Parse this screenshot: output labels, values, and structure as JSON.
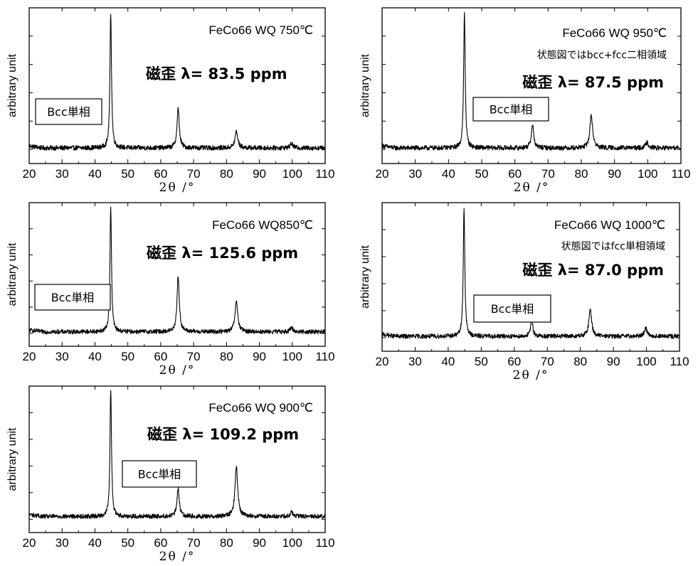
{
  "chart_data": [
    {
      "type": "line",
      "title": "FeCo66  WQ 750℃",
      "note": "",
      "magnetostriction": "磁歪 λ= 83.5 ppm",
      "phase_label": "Bcc単相",
      "xlabel": "2θ /°",
      "ylabel": "arbitrary unit",
      "xlim": [
        20,
        110
      ],
      "ylim": [
        0,
        100
      ],
      "xticks": [
        "20",
        "30",
        "40",
        "50",
        "60",
        "70",
        "80",
        "90",
        "100",
        "110"
      ],
      "grid": false,
      "baseline": 9,
      "peaks": [
        {
          "x": 44.8,
          "y": 100
        },
        {
          "x": 65.3,
          "y": 35
        },
        {
          "x": 83.0,
          "y": 20
        },
        {
          "x": 99.8,
          "y": 12
        }
      ]
    },
    {
      "type": "line",
      "title": "FeCo66  WQ 950℃",
      "note": "状態図ではbcc+fcc二相領域",
      "magnetostriction": "磁歪 λ= 87.5 ppm",
      "phase_label": "Bcc単相",
      "xlabel": "2θ /°",
      "ylabel": "arbitrary unit",
      "xlim": [
        20,
        110
      ],
      "ylim": [
        0,
        100
      ],
      "xticks": [
        "20",
        "30",
        "40",
        "50",
        "60",
        "70",
        "80",
        "90",
        "100",
        "110"
      ],
      "grid": false,
      "baseline": 9,
      "peaks": [
        {
          "x": 44.8,
          "y": 100
        },
        {
          "x": 65.3,
          "y": 25
        },
        {
          "x": 83.0,
          "y": 31
        },
        {
          "x": 99.8,
          "y": 13
        }
      ]
    },
    {
      "type": "line",
      "title": "FeCo66  WQ850℃",
      "note": "",
      "magnetostriction": "磁歪 λ= 125.6 ppm",
      "phase_label": "Bcc単相",
      "xlabel": "2θ /°",
      "ylabel": "arbitrary unit",
      "xlim": [
        20,
        110
      ],
      "ylim": [
        0,
        100
      ],
      "xticks": [
        "20",
        "30",
        "40",
        "50",
        "60",
        "70",
        "80",
        "90",
        "100",
        "110"
      ],
      "grid": false,
      "baseline": 9,
      "peaks": [
        {
          "x": 44.8,
          "y": 100
        },
        {
          "x": 65.3,
          "y": 49
        },
        {
          "x": 83.0,
          "y": 31
        },
        {
          "x": 99.8,
          "y": 12
        }
      ]
    },
    {
      "type": "line",
      "title": "FeCo66  WQ 1000℃",
      "note": "状態図ではfcc単相領域",
      "magnetostriction": "磁歪 λ= 87.0 ppm",
      "phase_label": "Bcc単相",
      "xlabel": "2θ /°",
      "ylabel": "arbitrary unit",
      "xlim": [
        20,
        110
      ],
      "ylim": [
        0,
        100
      ],
      "xticks": [
        "20",
        "30",
        "40",
        "50",
        "60",
        "70",
        "80",
        "90",
        "100",
        "110"
      ],
      "grid": false,
      "baseline": 9,
      "peaks": [
        {
          "x": 44.8,
          "y": 100
        },
        {
          "x": 65.3,
          "y": 20
        },
        {
          "x": 83.0,
          "y": 28
        },
        {
          "x": 99.8,
          "y": 15
        }
      ]
    },
    {
      "type": "line",
      "title": "FeCo66  WQ 900℃",
      "note": "",
      "magnetostriction": "磁歪 λ= 109.2 ppm",
      "phase_label": "Bcc単相",
      "xlabel": "2θ /°",
      "ylabel": "arbitrary unit",
      "xlim": [
        20,
        110
      ],
      "ylim": [
        0,
        100
      ],
      "xticks": [
        "20",
        "30",
        "40",
        "50",
        "60",
        "70",
        "80",
        "90",
        "100",
        "110"
      ],
      "grid": false,
      "baseline": 10,
      "peaks": [
        {
          "x": 44.8,
          "y": 100
        },
        {
          "x": 65.3,
          "y": 30
        },
        {
          "x": 83.0,
          "y": 45
        },
        {
          "x": 99.8,
          "y": 13
        }
      ]
    }
  ]
}
